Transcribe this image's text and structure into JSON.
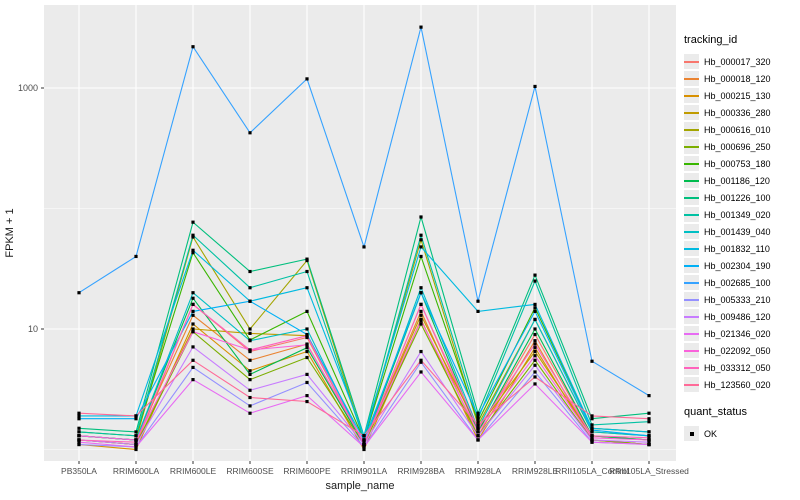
{
  "figure": {
    "panel_bg": "#ebebeb",
    "grid_color": "#ffffff",
    "tick_label_color": "#4d4d4d",
    "axis_title_color": "#1a1a1a",
    "point_color": "#000000"
  },
  "legend": {
    "tracking_title": "tracking_id",
    "quant_title": "quant_status",
    "quant_ok_label": "OK"
  },
  "chart_data": {
    "type": "line",
    "title": "",
    "xlabel": "sample_name",
    "ylabel": "FPKM + 1",
    "y_scale": "log10",
    "y_major_ticks": [
      {
        "label": "10",
        "value": 10
      },
      {
        "label": "1000",
        "value": 1000
      }
    ],
    "y_minor_values": [
      1,
      100
    ],
    "ylim": [
      1,
      4900
    ],
    "grid": "on",
    "legend_position": "right",
    "categories": [
      "PB350LA",
      "RRIM600LA",
      "RRIM600LE",
      "RRIM600SE",
      "RRIM600PE",
      "RRIM901LA",
      "RRIM928BA",
      "RRIM928LA",
      "RRIM928LE",
      "RRII105LA_Control",
      "RRII105LA_Stressed"
    ],
    "series": [
      {
        "name": "Hb_000017_320",
        "color": "#F8766D",
        "values": [
          1.2,
          1.1,
          16,
          6.5,
          8.5,
          1.1,
          16,
          1.4,
          9,
          1.3,
          1.2
        ]
      },
      {
        "name": "Hb_000018_120",
        "color": "#EA8331",
        "values": [
          1.3,
          1.2,
          13,
          5.5,
          7.5,
          1.1,
          14,
          1.3,
          8,
          1.2,
          1.1
        ]
      },
      {
        "name": "Hb_000215_130",
        "color": "#D89000",
        "values": [
          1.1,
          1.0,
          11,
          4.5,
          6.5,
          1.0,
          12,
          1.2,
          7,
          1.2,
          1.1
        ]
      },
      {
        "name": "Hb_000336_280",
        "color": "#C09B00",
        "values": [
          1.2,
          1.1,
          10,
          9.2,
          8.8,
          1.1,
          13,
          1.5,
          6.5,
          1.3,
          1.2
        ]
      },
      {
        "name": "Hb_000616_010",
        "color": "#A3A500",
        "values": [
          1.3,
          1.2,
          58,
          10,
          37,
          1.2,
          55,
          1.6,
          12,
          1.4,
          1.3
        ]
      },
      {
        "name": "Hb_000696_250",
        "color": "#7CAE00",
        "values": [
          1.2,
          1.1,
          9.5,
          3.8,
          5.8,
          1.1,
          11,
          1.3,
          5.5,
          1.2,
          1.1
        ]
      },
      {
        "name": "Hb_000753_180",
        "color": "#39B600",
        "values": [
          1.4,
          1.3,
          43,
          8.1,
          14,
          1.2,
          40,
          1.7,
          15,
          1.5,
          1.4
        ]
      },
      {
        "name": "Hb_001186_120",
        "color": "#00BB4E",
        "values": [
          1.3,
          1.2,
          18,
          4.2,
          7,
          1.1,
          20,
          1.4,
          10,
          1.3,
          1.2
        ]
      },
      {
        "name": "Hb_001226_100",
        "color": "#00BF7D",
        "values": [
          1.5,
          1.4,
          77,
          30,
          38,
          1.3,
          85,
          2.0,
          28,
          1.8,
          2.0
        ]
      },
      {
        "name": "Hb_001349_020",
        "color": "#00C1A3",
        "values": [
          1.4,
          1.3,
          60,
          22,
          30,
          1.2,
          60,
          1.8,
          25,
          1.6,
          1.7
        ]
      },
      {
        "name": "Hb_001439_040",
        "color": "#00BFC4",
        "values": [
          1.3,
          1.2,
          20,
          8,
          10,
          1.1,
          22,
          1.5,
          12,
          1.4,
          1.3
        ]
      },
      {
        "name": "Hb_001832_110",
        "color": "#00BAE0",
        "values": [
          1.9,
          1.9,
          45,
          17,
          22,
          1.3,
          48,
          14,
          16,
          1.5,
          1.4
        ]
      },
      {
        "name": "Hb_002304_190",
        "color": "#00B0F6",
        "values": [
          1.8,
          1.8,
          14,
          17,
          9,
          1.2,
          20,
          1.9,
          14,
          1.45,
          1.3
        ]
      },
      {
        "name": "Hb_002685_100",
        "color": "#35A2FF",
        "values": [
          20,
          40,
          2200,
          425,
          1190,
          48,
          3200,
          17,
          1030,
          5.4,
          2.8
        ]
      },
      {
        "name": "Hb_005333_210",
        "color": "#9590FF",
        "values": [
          1.1,
          1.05,
          4.8,
          2.3,
          3.6,
          1.05,
          5.3,
          1.2,
          4.4,
          1.15,
          1.1
        ]
      },
      {
        "name": "Hb_009486_120",
        "color": "#C77CFF",
        "values": [
          1.2,
          1.1,
          7.1,
          3.1,
          4.2,
          1.1,
          6.5,
          1.3,
          5.0,
          1.2,
          1.15
        ]
      },
      {
        "name": "Hb_021346_020",
        "color": "#E76BF3",
        "values": [
          1.15,
          1.05,
          3.8,
          2.0,
          2.8,
          1.05,
          4.4,
          1.2,
          3.5,
          1.15,
          1.1
        ]
      },
      {
        "name": "Hb_022092_050",
        "color": "#FA62DB",
        "values": [
          1.3,
          1.2,
          9.5,
          6.7,
          7.4,
          1.15,
          11.7,
          1.4,
          6.0,
          1.25,
          1.2
        ]
      },
      {
        "name": "Hb_033312_050",
        "color": "#FF62BC",
        "values": [
          1.2,
          1.15,
          16,
          6.7,
          8.8,
          1.1,
          16,
          1.5,
          7.5,
          1.3,
          1.25
        ]
      },
      {
        "name": "Hb_123560_020",
        "color": "#FF6A98",
        "values": [
          2.0,
          1.9,
          5.5,
          2.7,
          2.5,
          1.3,
          5.5,
          1.6,
          4.0,
          1.9,
          1.8
        ]
      }
    ]
  }
}
